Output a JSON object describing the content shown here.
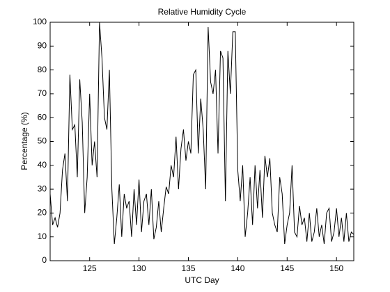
{
  "chart_data": {
    "type": "line",
    "title": "Relative Humidity Cycle",
    "xlabel": "UTC Day",
    "ylabel": "Percentage (%)",
    "x": [
      121,
      121.25,
      121.5,
      121.75,
      122,
      122.25,
      122.5,
      122.75,
      123,
      123.25,
      123.5,
      123.75,
      124,
      124.25,
      124.5,
      124.75,
      125,
      125.25,
      125.5,
      125.75,
      126,
      126.25,
      126.5,
      126.75,
      127,
      127.25,
      127.5,
      127.75,
      128,
      128.25,
      128.5,
      128.75,
      129,
      129.25,
      129.5,
      129.75,
      130,
      130.25,
      130.5,
      130.75,
      131,
      131.25,
      131.5,
      131.75,
      132,
      132.25,
      132.5,
      132.75,
      133,
      133.25,
      133.5,
      133.75,
      134,
      134.25,
      134.5,
      134.75,
      135,
      135.25,
      135.5,
      135.75,
      136,
      136.25,
      136.5,
      136.75,
      137,
      137.25,
      137.5,
      137.75,
      138,
      138.25,
      138.5,
      138.75,
      139,
      139.25,
      139.5,
      139.75,
      140,
      140.25,
      140.5,
      140.75,
      141,
      141.25,
      141.5,
      141.75,
      142,
      142.25,
      142.5,
      142.75,
      143,
      143.25,
      143.5,
      143.75,
      144,
      144.25,
      144.5,
      144.75,
      145,
      145.25,
      145.5,
      145.75,
      146,
      146.25,
      146.5,
      146.75,
      147,
      147.25,
      147.5,
      147.75,
      148,
      148.25,
      148.5,
      148.75,
      149,
      149.25,
      149.5,
      149.75,
      150,
      150.25,
      150.5,
      150.75,
      151,
      151.25,
      151.5,
      151.75
    ],
    "series": [
      {
        "name": "Relative Humidity",
        "color": "#000000",
        "values": [
          28,
          15,
          18,
          14,
          20,
          38,
          45,
          25,
          78,
          55,
          57,
          35,
          76,
          58,
          20,
          35,
          70,
          40,
          50,
          35,
          100,
          85,
          60,
          55,
          80,
          30,
          7,
          18,
          32,
          10,
          28,
          22,
          25,
          10,
          30,
          15,
          34,
          12,
          25,
          28,
          15,
          30,
          9,
          14,
          25,
          12,
          22,
          31,
          28,
          40,
          35,
          52,
          30,
          47,
          55,
          42,
          50,
          45,
          78,
          80,
          45,
          68,
          55,
          30,
          98,
          75,
          70,
          80,
          45,
          88,
          85,
          25,
          88,
          70,
          96,
          96,
          38,
          25,
          40,
          10,
          20,
          35,
          15,
          40,
          22,
          38,
          18,
          44,
          35,
          43,
          20,
          15,
          12,
          35,
          28,
          7,
          15,
          20,
          40,
          12,
          10,
          23,
          15,
          18,
          8,
          20,
          8,
          12,
          22,
          10,
          15,
          7,
          20,
          22,
          8,
          12,
          22,
          10,
          18,
          8,
          20,
          8,
          12,
          11
        ]
      }
    ],
    "xlim": [
      121,
      151.75
    ],
    "ylim": [
      0,
      100
    ],
    "xticks": [
      125,
      130,
      135,
      140,
      145,
      150
    ],
    "yticks": [
      0,
      10,
      20,
      30,
      40,
      50,
      60,
      70,
      80,
      90,
      100
    ]
  }
}
